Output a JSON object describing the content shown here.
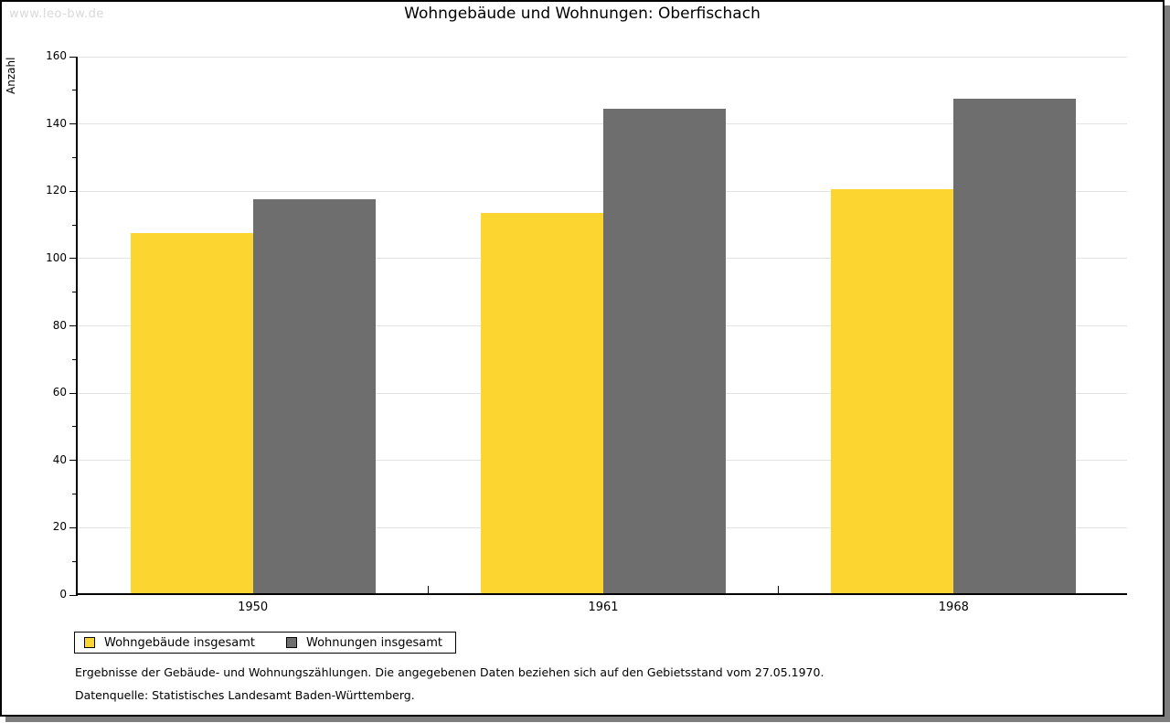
{
  "watermark": "www.leo-bw.de",
  "title": "Wohngebäude und Wohnungen: Oberfischach",
  "chart_data": {
    "type": "bar",
    "title": "Wohngebäude und Wohnungen: Oberfischach",
    "ylabel": "Anzahl",
    "xlabel": "",
    "categories": [
      "1950",
      "1961",
      "1968"
    ],
    "series": [
      {
        "name": "Wohngebäude insgesamt",
        "color": "#fcd530",
        "values": [
          107,
          113,
          120
        ]
      },
      {
        "name": "Wohnungen insgesamt",
        "color": "#6e6e6e",
        "values": [
          117,
          144,
          147
        ]
      }
    ],
    "ylim": [
      0,
      160
    ],
    "yticks": [
      0,
      20,
      40,
      60,
      80,
      100,
      120,
      140,
      160
    ],
    "minor_tick_step": 10,
    "grid": "horizontal-major",
    "legend_position": "bottom-left"
  },
  "footer": {
    "line1": "Ergebnisse der Gebäude- und Wohnungszählungen. Die angegebenen Daten beziehen sich auf den Gebietsstand vom 27.05.1970.",
    "line2": "Datenquelle: Statistisches Landesamt Baden-Württemberg."
  },
  "colors": {
    "bar_yellow": "#fcd530",
    "bar_gray": "#6e6e6e",
    "gridline": "#e3e3e3",
    "axis": "#000000",
    "watermark": "#d9d9d9",
    "shadow": "#7e7e7e",
    "background": "#ffffff"
  }
}
